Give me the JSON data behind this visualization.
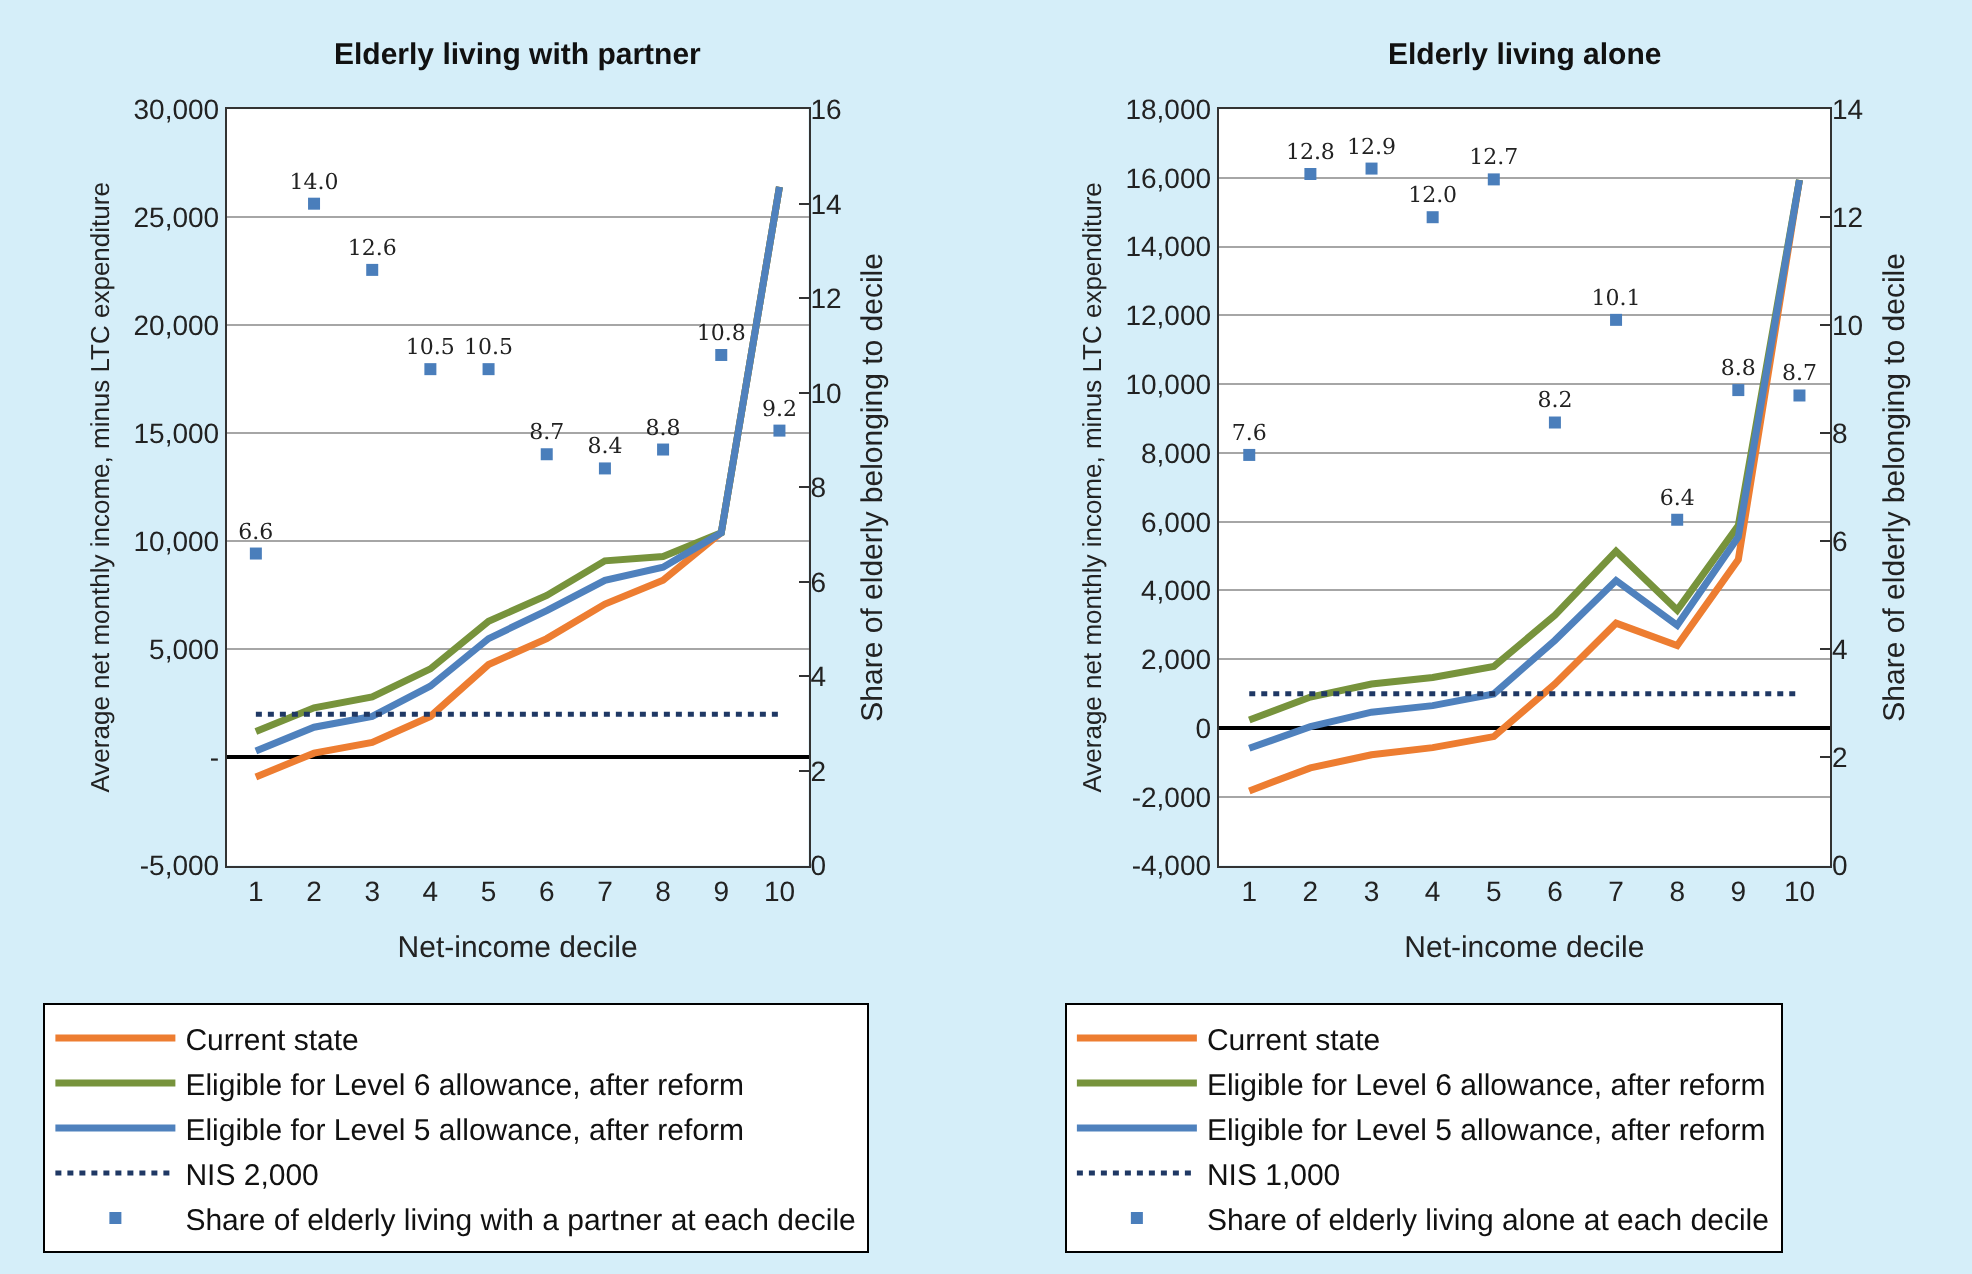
{
  "chart_data": [
    {
      "type": "line",
      "title": "Elderly living with partner",
      "xlabel": "Net-income decile",
      "ylabel": "Average net monthly income, minus LTC expenditure",
      "y2label": "Share of elderly belonging to decile",
      "categories": [
        "1",
        "2",
        "3",
        "4",
        "5",
        "6",
        "7",
        "8",
        "9",
        "10"
      ],
      "ylim": [
        -5000,
        30000
      ],
      "yticks": [
        {
          "value": -5000,
          "label": "-5,000"
        },
        {
          "value": 0,
          "label": "-"
        },
        {
          "value": 5000,
          "label": "5,000"
        },
        {
          "value": 10000,
          "label": "10,000"
        },
        {
          "value": 15000,
          "label": "15,000"
        },
        {
          "value": 20000,
          "label": "20,000"
        },
        {
          "value": 25000,
          "label": "25,000"
        },
        {
          "value": 30000,
          "label": "30,000"
        }
      ],
      "y2lim": [
        0,
        16
      ],
      "y2ticks": [
        0,
        2,
        4,
        6,
        8,
        10,
        12,
        14,
        16
      ],
      "grid": "y",
      "legend": "bottom",
      "series": [
        {
          "name": "Current state",
          "color": "#ed7d31",
          "values": [
            -900,
            200,
            700,
            1900,
            4300,
            5500,
            7100,
            8200,
            10400,
            26400
          ]
        },
        {
          "name": "Eligible for Level 6 allowance, after reform",
          "color": "#77933c",
          "values": [
            1200,
            2300,
            2800,
            4100,
            6300,
            7500,
            9100,
            9300,
            10400,
            26400
          ]
        },
        {
          "name": "Eligible for Level 5 allowance, after reform",
          "color": "#4f81bd",
          "values": [
            300,
            1400,
            1900,
            3300,
            5500,
            6800,
            8200,
            8800,
            10400,
            26400
          ]
        },
        {
          "name": "NIS 2,000",
          "color": "#1f3864",
          "line_style": "dotted",
          "values": [
            2000,
            2000,
            2000,
            2000,
            2000,
            2000,
            2000,
            2000,
            2000,
            2000
          ]
        },
        {
          "name": "Share of elderly living with a partner at each decile",
          "color": "#4a7ebb",
          "type": "scatter",
          "marker": "square",
          "axis": "y2",
          "values": [
            6.6,
            14.0,
            12.6,
            10.5,
            10.5,
            8.7,
            8.4,
            8.8,
            10.8,
            9.2
          ],
          "value_labels": [
            "6.6",
            "14.0",
            "12.6",
            "10.5",
            "10.5",
            "8.7",
            "8.4",
            "8.8",
            "10.8",
            "9.2"
          ]
        }
      ]
    },
    {
      "type": "line",
      "title": "Elderly living alone",
      "xlabel": "Net-income decile",
      "ylabel": "Average net monthly income, minus LTC expenditure",
      "y2label": "Share of elderly belonging to decile",
      "categories": [
        "1",
        "2",
        "3",
        "4",
        "5",
        "6",
        "7",
        "8",
        "9",
        "10"
      ],
      "ylim": [
        -4000,
        18000
      ],
      "yticks": [
        {
          "value": -4000,
          "label": "-4,000"
        },
        {
          "value": -2000,
          "label": "-2,000"
        },
        0,
        {
          "value": 2000,
          "label": "2,000"
        },
        {
          "value": 4000,
          "label": "4,000"
        },
        {
          "value": 6000,
          "label": "6,000"
        },
        {
          "value": 8000,
          "label": "8,000"
        },
        {
          "value": 10000,
          "label": "10,000"
        },
        {
          "value": 12000,
          "label": "12,000"
        },
        {
          "value": 14000,
          "label": "14,000"
        },
        {
          "value": 16000,
          "label": "16,000"
        },
        {
          "value": 18000,
          "label": "18,000"
        }
      ],
      "y2lim": [
        0,
        14
      ],
      "y2ticks": [
        0,
        2,
        4,
        6,
        8,
        10,
        12,
        14
      ],
      "grid": "y",
      "legend": "bottom",
      "series": [
        {
          "name": "Current state",
          "color": "#ed7d31",
          "values": [
            -1830,
            -1160,
            -780,
            -570,
            -250,
            1280,
            3050,
            2400,
            4900,
            15940
          ]
        },
        {
          "name": "Eligible for Level 6 allowance, after reform",
          "color": "#77933c",
          "values": [
            230,
            900,
            1280,
            1470,
            1790,
            3280,
            5140,
            3430,
            5890,
            15940
          ]
        },
        {
          "name": "Eligible for Level 5 allowance, after reform",
          "color": "#4f81bd",
          "values": [
            -590,
            40,
            460,
            650,
            990,
            2550,
            4290,
            2990,
            5560,
            15940
          ]
        },
        {
          "name": "NIS 1,000",
          "color": "#1f3864",
          "line_style": "dotted",
          "values": [
            1000,
            1000,
            1000,
            1000,
            1000,
            1000,
            1000,
            1000,
            1000,
            1000
          ]
        },
        {
          "name": "Share of elderly living alone at each decile",
          "color": "#4a7ebb",
          "type": "scatter",
          "marker": "square",
          "axis": "y2",
          "values": [
            7.6,
            12.8,
            12.9,
            12.0,
            12.7,
            8.2,
            10.1,
            6.4,
            8.8,
            8.7
          ],
          "value_labels": [
            "7.6",
            "12.8",
            "12.9",
            "12.0",
            "12.7",
            "8.2",
            "10.1",
            "6.4",
            "8.8",
            "8.7"
          ]
        }
      ]
    }
  ]
}
